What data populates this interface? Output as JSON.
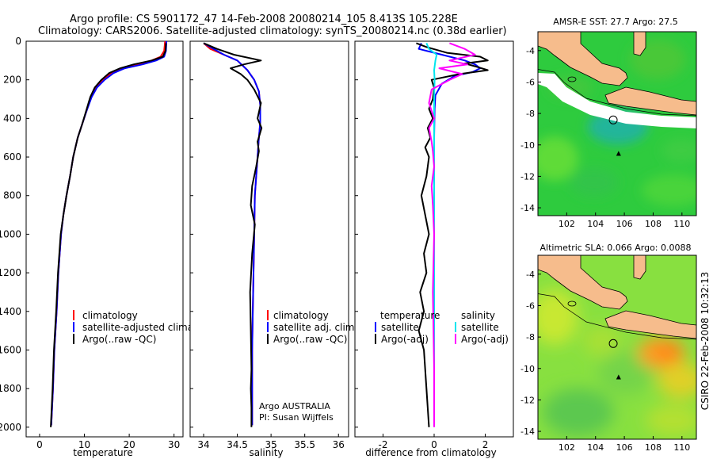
{
  "header": {
    "line1": "Argo profile: CS 5901172_47 14-Feb-2008 20080214_105 8.413S 105.228E",
    "line2": "Climatology: CARS2006. Satellite-adjusted climatology: synTS_20080214.nc (0.38d earlier)"
  },
  "side_label": "CSIRO 22-Feb-2008 10:32:13",
  "colors": {
    "climatology": "#ff0000",
    "satellite": "#0000ff",
    "argo": "#000000",
    "cyan": "#00e5ee",
    "magenta": "#ff00ff",
    "land": "#f6bc8c",
    "ocean_sst": "#2ecb3e",
    "ocean_sla": "#88e040"
  },
  "chart_data": [
    {
      "type": "line",
      "name": "temperature",
      "xlabel": "temperature",
      "ylabel": "",
      "xlim": [
        -3,
        32
      ],
      "ylim": [
        2050,
        0
      ],
      "xticks": [
        0,
        10,
        20,
        30
      ],
      "yticks": [
        0,
        200,
        400,
        600,
        800,
        1000,
        1200,
        1400,
        1600,
        1800,
        2000
      ],
      "legend": [
        "climatology",
        "satellite-adjusted climatology",
        "Argo(..raw -QC)"
      ],
      "series": [
        {
          "name": "climatology",
          "color": "#ff0000",
          "x": [
            28.0,
            27.8,
            27.0,
            25.0,
            22.0,
            19.0,
            16.0,
            14.0,
            12.5,
            11.5,
            10.5,
            9.5,
            8.5,
            7.5,
            6.8,
            6.0,
            5.3,
            4.8,
            4.2,
            3.8,
            3.3,
            3.0,
            2.6
          ],
          "y": [
            0,
            50,
            80,
            100,
            120,
            140,
            165,
            200,
            240,
            290,
            360,
            430,
            500,
            600,
            700,
            800,
            900,
            1000,
            1200,
            1400,
            1600,
            1800,
            1990
          ]
        },
        {
          "name": "satellite",
          "color": "#0000ff",
          "x": [
            28.3,
            28.2,
            27.8,
            26.0,
            23.0,
            19.0,
            16.5,
            14.5,
            12.8,
            11.6,
            10.5,
            9.5,
            8.5,
            7.5,
            6.8,
            6.0,
            5.3,
            4.8,
            4.2,
            3.8,
            3.3,
            3.0,
            2.6
          ],
          "y": [
            0,
            50,
            80,
            100,
            120,
            140,
            165,
            200,
            240,
            290,
            360,
            430,
            500,
            600,
            700,
            800,
            900,
            1000,
            1200,
            1400,
            1600,
            1800,
            1990
          ]
        },
        {
          "name": "argo",
          "color": "#000000",
          "x": [
            28.2,
            28.1,
            27.5,
            25.0,
            21.0,
            18.0,
            15.5,
            13.8,
            12.3,
            11.3,
            10.4,
            9.5,
            8.5,
            7.5,
            6.8,
            6.0,
            5.3,
            4.7,
            4.1,
            3.7,
            3.2,
            2.9,
            2.5
          ],
          "y": [
            10,
            50,
            80,
            100,
            120,
            140,
            165,
            200,
            240,
            290,
            360,
            430,
            500,
            600,
            700,
            800,
            900,
            1000,
            1200,
            1400,
            1600,
            1800,
            2000
          ]
        }
      ]
    },
    {
      "type": "line",
      "name": "salinity",
      "xlabel": "salinity",
      "ylabel": "",
      "xlim": [
        33.8,
        36.15
      ],
      "ylim": [
        2050,
        0
      ],
      "xticks": [
        34,
        34.5,
        35,
        35.5,
        36
      ],
      "legend": [
        "climatology",
        "satellite adj. clim.",
        "Argo(..raw -QC)"
      ],
      "annotations": [
        "Argo AUSTRALIA",
        "PI: Susan Wijffels"
      ],
      "series": [
        {
          "name": "climatology",
          "color": "#ff0000",
          "x": [
            34.0,
            34.1,
            34.3,
            34.5,
            34.65,
            34.75,
            34.82,
            34.84,
            34.84,
            34.82,
            34.8,
            34.78,
            34.76,
            34.75,
            34.74,
            34.73,
            34.72,
            34.72,
            34.72
          ],
          "y": [
            10,
            40,
            70,
            100,
            150,
            200,
            260,
            330,
            420,
            500,
            600,
            700,
            800,
            1000,
            1200,
            1400,
            1600,
            1800,
            1990
          ]
        },
        {
          "name": "satellite",
          "color": "#0000ff",
          "x": [
            34.0,
            34.15,
            34.3,
            34.5,
            34.65,
            34.75,
            34.82,
            34.84,
            34.84,
            34.82,
            34.8,
            34.78,
            34.76,
            34.75,
            34.74,
            34.73,
            34.72,
            34.72,
            34.72
          ],
          "y": [
            10,
            40,
            70,
            100,
            150,
            200,
            260,
            330,
            420,
            500,
            600,
            700,
            800,
            1000,
            1200,
            1400,
            1600,
            1800,
            1990
          ]
        },
        {
          "name": "argo",
          "color": "#000000",
          "x": [
            34.0,
            34.2,
            34.45,
            34.85,
            34.6,
            34.4,
            34.55,
            34.65,
            34.75,
            34.85,
            34.8,
            34.86,
            34.8,
            34.82,
            34.78,
            34.72,
            34.7,
            34.76,
            34.72,
            34.69,
            34.7,
            34.71,
            34.7,
            34.71,
            34.71
          ],
          "y": [
            10,
            40,
            70,
            100,
            120,
            140,
            170,
            200,
            250,
            320,
            400,
            450,
            520,
            570,
            650,
            750,
            850,
            950,
            1100,
            1300,
            1500,
            1700,
            1800,
            1900,
            2000
          ]
        }
      ]
    },
    {
      "type": "line",
      "name": "difference",
      "xlabel": "difference from climatology",
      "ylabel": "",
      "xlim": [
        -3.1,
        3.1
      ],
      "ylim": [
        2050,
        0
      ],
      "xticks": [
        -2,
        0,
        2
      ],
      "legend_left_title": "temperature",
      "legend_right_title": "salinity",
      "legend": [
        "satellite",
        "Argo(-adj)",
        "satellite",
        "Argo(-adj)"
      ],
      "series": [
        {
          "name": "temp satellite",
          "color": "#0000ff",
          "x": [
            -0.5,
            -0.6,
            0.3,
            1.2,
            1.6,
            1.8,
            1.5,
            0.8,
            0.3,
            0.05,
            0.02,
            0.0,
            0.0,
            0.0,
            0.0,
            0.0,
            0.0
          ],
          "y": [
            10,
            40,
            70,
            100,
            120,
            140,
            160,
            180,
            220,
            280,
            350,
            500,
            800,
            1200,
            1600,
            1900,
            1990
          ]
        },
        {
          "name": "temp argo",
          "color": "#000000",
          "x": [
            -0.7,
            -0.3,
            0.5,
            1.8,
            2.1,
            1.2,
            1.6,
            2.1,
            1.0,
            -0.1,
            0.0,
            -0.05,
            -0.2,
            -0.05,
            -0.25,
            -0.15,
            -0.35,
            -0.2,
            -0.3,
            -0.5,
            -0.35,
            -0.2,
            -0.4,
            -0.3,
            -0.55,
            -0.4,
            -0.6,
            -0.4,
            -0.3,
            -0.2
          ],
          "y": [
            10,
            30,
            60,
            80,
            100,
            115,
            130,
            150,
            170,
            200,
            240,
            300,
            350,
            400,
            450,
            500,
            550,
            600,
            700,
            800,
            900,
            1000,
            1100,
            1200,
            1300,
            1400,
            1500,
            1600,
            1800,
            2000
          ]
        },
        {
          "name": "sal satellite",
          "color": "#00e5ee",
          "x": [
            -0.3,
            -0.2,
            0.1,
            0.05,
            0.0,
            0.02,
            0.0,
            0.0,
            0.0,
            0.0,
            0.0,
            0.0
          ],
          "y": [
            10,
            40,
            70,
            100,
            150,
            200,
            300,
            500,
            800,
            1200,
            1600,
            1990
          ]
        },
        {
          "name": "sal argo",
          "color": "#ff00ff",
          "x": [
            0.6,
            1.2,
            1.6,
            0.6,
            1.3,
            0.2,
            1.1,
            0.6,
            -0.1,
            -0.2,
            0.0,
            -0.2,
            -0.1,
            -0.05,
            0.0,
            -0.1,
            -0.05,
            0.0,
            -0.05,
            0.0,
            0.0
          ],
          "y": [
            10,
            40,
            70,
            100,
            120,
            140,
            170,
            200,
            250,
            320,
            400,
            450,
            520,
            570,
            650,
            750,
            850,
            1000,
            1300,
            1700,
            2000
          ]
        }
      ]
    },
    {
      "type": "heatmap",
      "name": "sst-map",
      "title": "AMSR-E SST: 27.7 Argo: 27.5",
      "xlim": [
        100,
        111
      ],
      "ylim": [
        -14.5,
        -2.8
      ],
      "xticks": [
        102,
        104,
        106,
        108,
        110
      ],
      "yticks": [
        -4,
        -6,
        -8,
        -10,
        -12,
        -14
      ],
      "markers": [
        {
          "label": "argo float",
          "lon": 105.228,
          "lat": -8.413
        },
        {
          "label": "previous position",
          "lon": 105.6,
          "lat": -10.5
        }
      ]
    },
    {
      "type": "heatmap",
      "name": "sla-map",
      "title": "Altimetric SLA: 0.066 Argo: 0.0088",
      "xlim": [
        100,
        111
      ],
      "ylim": [
        -14.5,
        -2.8
      ],
      "xticks": [
        102,
        104,
        106,
        108,
        110
      ],
      "yticks": [
        -4,
        -6,
        -8,
        -10,
        -12,
        -14
      ],
      "markers": [
        {
          "label": "argo float",
          "lon": 105.228,
          "lat": -8.413
        },
        {
          "label": "previous position",
          "lon": 105.6,
          "lat": -10.5
        }
      ]
    }
  ]
}
